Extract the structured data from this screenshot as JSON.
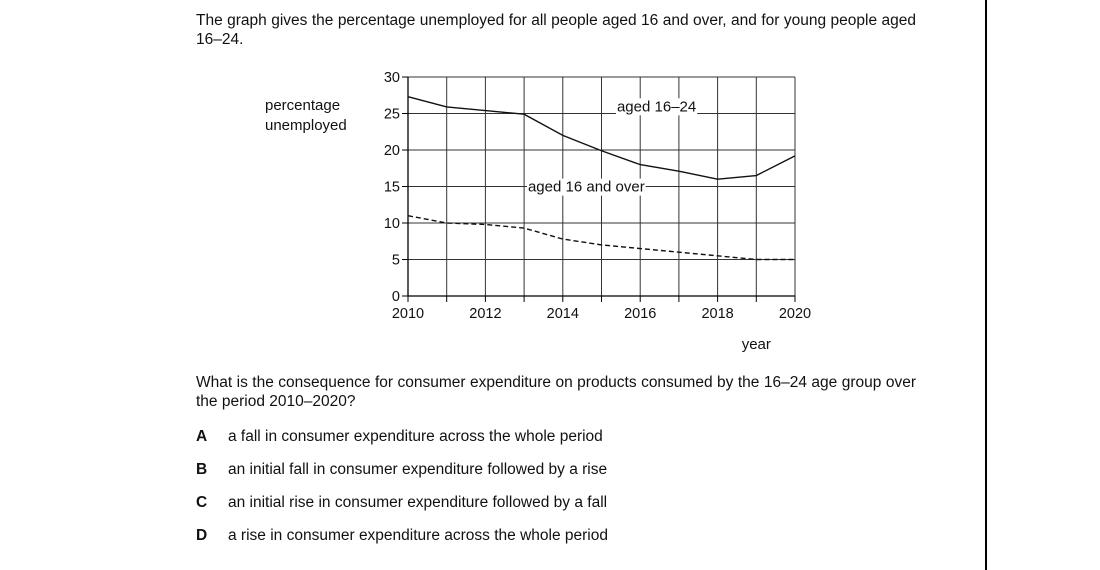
{
  "intro_text": "The graph gives the percentage unemployed for all people aged 16 and over, and for young people aged 16–24.",
  "question_text": "What is the consequence for consumer expenditure on products consumed by the 16–24 age group over the period 2010–2020?",
  "options": [
    {
      "letter": "A",
      "text": "a fall in consumer expenditure across the whole period"
    },
    {
      "letter": "B",
      "text": "an initial fall in consumer expenditure followed by a rise"
    },
    {
      "letter": "C",
      "text": "an initial rise in consumer expenditure followed by a fall"
    },
    {
      "letter": "D",
      "text": "a rise in consumer expenditure across the whole period"
    }
  ],
  "chart_data": {
    "type": "line",
    "title": "",
    "ylabel_lines": [
      "percentage",
      "unemployed"
    ],
    "xlabel": "year",
    "xlim": [
      2010,
      2020
    ],
    "ylim": [
      0,
      30
    ],
    "x_ticks": [
      2010,
      2012,
      2014,
      2016,
      2018,
      2020
    ],
    "y_ticks": [
      0,
      5,
      10,
      15,
      20,
      25,
      30
    ],
    "grid": true,
    "series": [
      {
        "name": "aged 16–24",
        "style": "solid",
        "x": [
          2010,
          2011,
          2012,
          2013,
          2014,
          2015,
          2016,
          2017,
          2018,
          2019,
          2020
        ],
        "values": [
          27.3,
          25.9,
          25.4,
          24.9,
          22.0,
          19.9,
          18.0,
          17.1,
          16.0,
          16.5,
          19.2
        ]
      },
      {
        "name": "aged 16 and over",
        "style": "dashed",
        "x": [
          2010,
          2011,
          2012,
          2013,
          2014,
          2015,
          2016,
          2017,
          2018,
          2019,
          2020
        ],
        "values": [
          11.0,
          10.0,
          9.8,
          9.3,
          7.8,
          7.0,
          6.5,
          6.0,
          5.5,
          5.0,
          5.0
        ]
      }
    ],
    "annotations": [
      {
        "text": "aged 16–24",
        "x": 2015.4,
        "y": 25.3
      },
      {
        "text": "aged 16 and over",
        "x": 2013.1,
        "y": 14.3
      }
    ]
  }
}
